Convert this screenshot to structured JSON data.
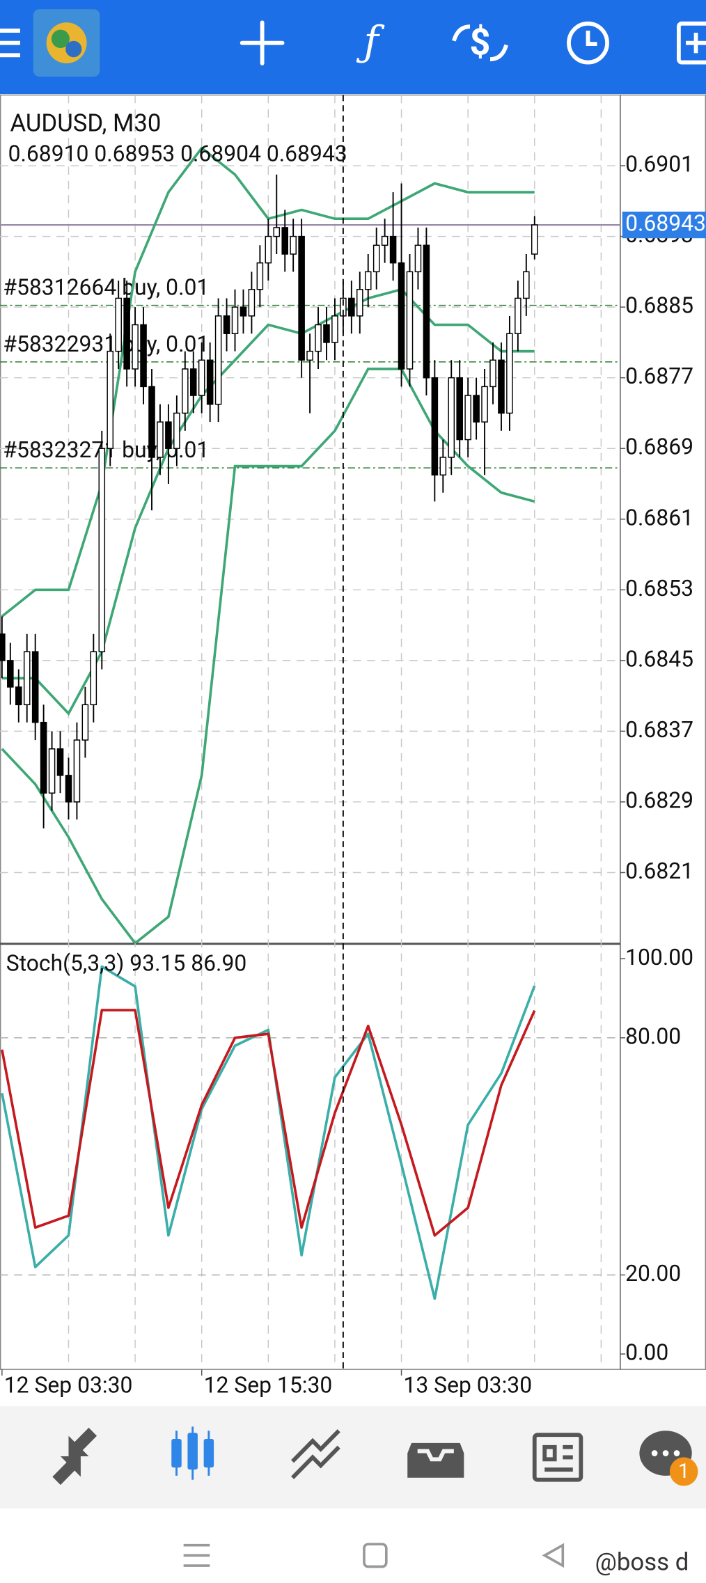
{
  "chart_data": {
    "type": "candlestick",
    "title": "AUDUSD, M30",
    "ohlc_text": "0.68910 0.68953 0.68904 0.68943",
    "x": [
      0,
      1,
      2,
      3,
      4,
      5,
      6,
      7,
      8,
      9,
      10,
      11,
      12,
      13,
      14,
      15,
      16,
      17,
      18,
      19,
      20,
      21,
      22,
      23,
      24,
      25,
      26,
      27,
      28,
      29,
      30,
      31,
      32,
      33,
      34,
      35,
      36,
      37,
      38,
      39,
      40,
      41,
      42,
      43,
      44,
      45,
      46,
      47,
      48,
      49,
      50,
      51,
      52,
      53,
      54,
      55,
      56,
      57,
      58,
      59,
      60,
      61,
      62,
      63,
      64
    ],
    "open": [
      0.6848,
      0.6845,
      0.6842,
      0.684,
      0.6846,
      0.6838,
      0.683,
      0.6835,
      0.6832,
      0.6829,
      0.6836,
      0.684,
      0.6846,
      0.6869,
      0.688,
      0.6886,
      0.6878,
      0.6883,
      0.6876,
      0.6868,
      0.6872,
      0.6869,
      0.6873,
      0.6878,
      0.6875,
      0.6879,
      0.6874,
      0.6884,
      0.6882,
      0.6885,
      0.6884,
      0.6887,
      0.689,
      0.6893,
      0.6894,
      0.6891,
      0.6893,
      0.6879,
      0.688,
      0.6883,
      0.6881,
      0.6884,
      0.6886,
      0.6884,
      0.6887,
      0.6889,
      0.6892,
      0.6893,
      0.689,
      0.6878,
      0.6889,
      0.6892,
      0.6877,
      0.6866,
      0.6868,
      0.6877,
      0.687,
      0.6875,
      0.6872,
      0.6876,
      0.6879,
      0.6873,
      0.6882,
      0.6886,
      0.6891
    ],
    "high": [
      0.685,
      0.6847,
      0.6844,
      0.6848,
      0.6848,
      0.684,
      0.6837,
      0.6837,
      0.6834,
      0.6838,
      0.6842,
      0.6848,
      0.6871,
      0.6882,
      0.6888,
      0.6888,
      0.6885,
      0.6885,
      0.6878,
      0.6874,
      0.6874,
      0.6875,
      0.688,
      0.688,
      0.6881,
      0.6881,
      0.6886,
      0.6886,
      0.6887,
      0.6887,
      0.6889,
      0.6892,
      0.6895,
      0.69,
      0.6896,
      0.6895,
      0.6895,
      0.6882,
      0.6885,
      0.6885,
      0.6886,
      0.6888,
      0.6888,
      0.6889,
      0.6891,
      0.6894,
      0.6895,
      0.6898,
      0.6899,
      0.6891,
      0.6894,
      0.6894,
      0.6879,
      0.687,
      0.6879,
      0.6879,
      0.6877,
      0.6877,
      0.6878,
      0.6881,
      0.6881,
      0.6884,
      0.6888,
      0.6891,
      0.68953
    ],
    "low": [
      0.6843,
      0.684,
      0.6838,
      0.6838,
      0.6836,
      0.6826,
      0.6828,
      0.683,
      0.6827,
      0.6827,
      0.6834,
      0.6838,
      0.6844,
      0.6867,
      0.6878,
      0.6876,
      0.6876,
      0.6874,
      0.6862,
      0.6866,
      0.6865,
      0.6867,
      0.6871,
      0.6873,
      0.6873,
      0.6872,
      0.6872,
      0.688,
      0.688,
      0.6882,
      0.6882,
      0.6885,
      0.6888,
      0.6891,
      0.6889,
      0.6889,
      0.6877,
      0.6873,
      0.6878,
      0.6879,
      0.6879,
      0.6882,
      0.6882,
      0.6882,
      0.6885,
      0.6887,
      0.689,
      0.6888,
      0.6876,
      0.6876,
      0.6887,
      0.6875,
      0.6863,
      0.6864,
      0.6866,
      0.6868,
      0.6868,
      0.687,
      0.6866,
      0.6874,
      0.6871,
      0.6871,
      0.688,
      0.6884,
      0.68904
    ],
    "close": [
      0.6845,
      0.6842,
      0.684,
      0.6846,
      0.6838,
      0.683,
      0.6835,
      0.6832,
      0.6829,
      0.6836,
      0.684,
      0.6846,
      0.6869,
      0.688,
      0.6886,
      0.6878,
      0.6883,
      0.6876,
      0.6868,
      0.6872,
      0.6869,
      0.6873,
      0.6878,
      0.6875,
      0.6879,
      0.6874,
      0.6884,
      0.6882,
      0.6885,
      0.6884,
      0.6887,
      0.689,
      0.6893,
      0.6894,
      0.6891,
      0.6893,
      0.6879,
      0.688,
      0.6883,
      0.6881,
      0.6884,
      0.6886,
      0.6884,
      0.6887,
      0.6889,
      0.6892,
      0.6893,
      0.689,
      0.6878,
      0.6889,
      0.6892,
      0.6877,
      0.6866,
      0.6868,
      0.6877,
      0.687,
      0.6875,
      0.6872,
      0.6876,
      0.6879,
      0.6873,
      0.6882,
      0.6886,
      0.6889,
      0.68943
    ],
    "up_color": "#ffffff",
    "down_color": "#000000",
    "bands": {
      "color": "#3ea776",
      "x": [
        0,
        4,
        8,
        12,
        16,
        20,
        24,
        28,
        32,
        36,
        40,
        44,
        48,
        52,
        56,
        60,
        64
      ],
      "series": [
        {
          "values": [
            0.685,
            0.6853,
            0.6853,
            0.6865,
            0.6889,
            0.6898,
            0.6903,
            0.69,
            0.6895,
            0.6896,
            0.6895,
            0.6895,
            0.6897,
            0.6899,
            0.6898,
            0.6898,
            0.6898
          ]
        },
        {
          "values": [
            0.6843,
            0.6843,
            0.6839,
            0.6846,
            0.686,
            0.6869,
            0.6875,
            0.6879,
            0.6883,
            0.6882,
            0.6884,
            0.6886,
            0.6887,
            0.6883,
            0.6883,
            0.688,
            0.688
          ]
        },
        {
          "values": [
            0.6835,
            0.6831,
            0.6825,
            0.6818,
            0.6813,
            0.6816,
            0.6832,
            0.6867,
            0.6867,
            0.6867,
            0.6871,
            0.6878,
            0.6878,
            0.6871,
            0.6867,
            0.6864,
            0.6863
          ]
        }
      ]
    },
    "orders": [
      {
        "label": "#58312664 buy, 0.01",
        "price": 0.68852
      },
      {
        "label": "#58322931 buy, 0.01",
        "price": 0.68788
      },
      {
        "label": "#58323271 buy, 0.01",
        "price": 0.68668
      }
    ],
    "price_tag": {
      "value": 0.68943,
      "label": "0.68943"
    },
    "xlim": [
      -0.24,
      74.3
    ],
    "xticks": [
      {
        "value": 0,
        "label": "12 Sep 03:30"
      },
      {
        "value": 24,
        "label": "12 Sep 15:30"
      },
      {
        "value": 48,
        "label": "13 Sep 03:30"
      }
    ],
    "xgrid": [
      8,
      16,
      24,
      32,
      40,
      48,
      56,
      64,
      72
    ],
    "crosshair_x": 41,
    "ylim": [
      0.6813,
      0.6909
    ],
    "yticks": [
      0.6821,
      0.6829,
      0.6837,
      0.6845,
      0.6853,
      0.6861,
      0.6869,
      0.6877,
      0.6885,
      0.6893,
      0.6901
    ],
    "indicator": {
      "title": "Stoch(5,3,3) 93.15 86.90",
      "x": [
        0,
        4,
        8,
        12,
        16,
        20,
        24,
        28,
        32,
        36,
        40,
        44,
        48,
        52,
        56,
        60,
        64
      ],
      "series": [
        {
          "color": "#3aaea8",
          "values": [
            66,
            22,
            30,
            98,
            93,
            30,
            62,
            78,
            82,
            25,
            70,
            81,
            48,
            14,
            58,
            71,
            93.15
          ]
        },
        {
          "color": "#c41a1f",
          "values": [
            77,
            32,
            35,
            87,
            87,
            37,
            63,
            80,
            81,
            32,
            61,
            83,
            58,
            30,
            37,
            68,
            86.9
          ]
        }
      ],
      "ylim": [
        -3.9,
        103.4
      ],
      "yticks": [
        {
          "value": 0,
          "label": "0.00"
        },
        {
          "value": 20,
          "label": "20.00"
        },
        {
          "value": 80,
          "label": "80.00"
        },
        {
          "value": 100,
          "label": "100.00"
        }
      ],
      "grid": [
        false,
        true,
        true,
        false
      ]
    }
  },
  "badge": "1",
  "watermark": "@boss d"
}
